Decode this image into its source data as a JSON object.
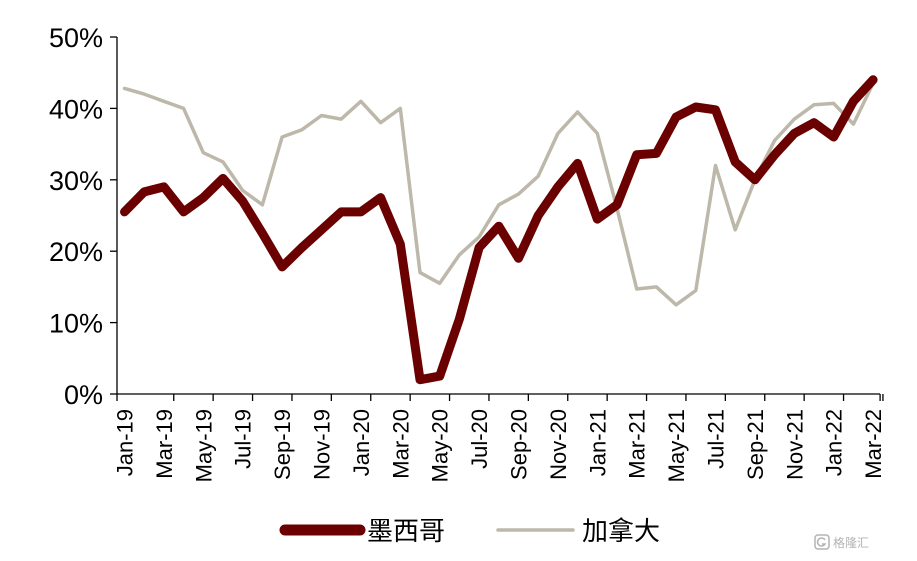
{
  "chart_data": {
    "type": "line",
    "title": "",
    "xlabel": "",
    "ylabel": "",
    "ylim": [
      0,
      50
    ],
    "y_ticks": [
      0,
      10,
      20,
      30,
      40,
      50
    ],
    "y_tick_labels": [
      "0%",
      "10%",
      "20%",
      "30%",
      "40%",
      "50%"
    ],
    "x_tick_labels": [
      "Jan-19",
      "Mar-19",
      "May-19",
      "Jul-19",
      "Sep-19",
      "Nov-19",
      "Jan-20",
      "Mar-20",
      "May-20",
      "Jul-20",
      "Sep-20",
      "Nov-20",
      "Jan-21",
      "Mar-21",
      "May-21",
      "Jul-21",
      "Sep-21",
      "Nov-21",
      "Jan-22",
      "Mar-22"
    ],
    "x": [
      "Jan-19",
      "Feb-19",
      "Mar-19",
      "Apr-19",
      "May-19",
      "Jun-19",
      "Jul-19",
      "Aug-19",
      "Sep-19",
      "Oct-19",
      "Nov-19",
      "Dec-19",
      "Jan-20",
      "Feb-20",
      "Mar-20",
      "Apr-20",
      "May-20",
      "Jun-20",
      "Jul-20",
      "Aug-20",
      "Sep-20",
      "Oct-20",
      "Nov-20",
      "Dec-20",
      "Jan-21",
      "Feb-21",
      "Mar-21",
      "Apr-21",
      "May-21",
      "Jun-21",
      "Jul-21",
      "Aug-21",
      "Sep-21",
      "Oct-21",
      "Nov-21",
      "Dec-21",
      "Jan-22",
      "Feb-22",
      "Mar-22"
    ],
    "grid": false,
    "legend_position": "bottom",
    "series": [
      {
        "name": "墨西哥",
        "color": "#6b0000",
        "values": [
          25.5,
          28.3,
          29.0,
          25.5,
          27.5,
          30.2,
          27.0,
          22.5,
          17.8,
          20.5,
          23.0,
          25.5,
          25.5,
          27.5,
          21.0,
          2.0,
          2.5,
          10.5,
          20.5,
          23.5,
          19.0,
          25.0,
          29.0,
          32.3,
          24.5,
          26.5,
          33.5,
          33.7,
          38.8,
          40.2,
          39.8,
          32.5,
          30.0,
          33.5,
          36.5,
          38.0,
          36.0,
          41.0,
          44.0
        ]
      },
      {
        "name": "加拿大",
        "color": "#bdb8aa",
        "values": [
          42.8,
          42.0,
          41.0,
          40.0,
          33.8,
          32.5,
          28.5,
          26.5,
          36.0,
          37.0,
          39.0,
          38.5,
          41.0,
          38.0,
          40.0,
          17.0,
          15.5,
          19.5,
          22.0,
          26.5,
          28.0,
          30.5,
          36.5,
          39.5,
          36.5,
          26.0,
          14.7,
          15.0,
          12.5,
          14.5,
          32.0,
          23.0,
          30.0,
          35.5,
          38.5,
          40.5,
          40.7,
          37.8,
          43.5
        ]
      }
    ]
  },
  "watermark": {
    "icon": "gelonghui-logo-icon",
    "text": "格隆汇"
  }
}
